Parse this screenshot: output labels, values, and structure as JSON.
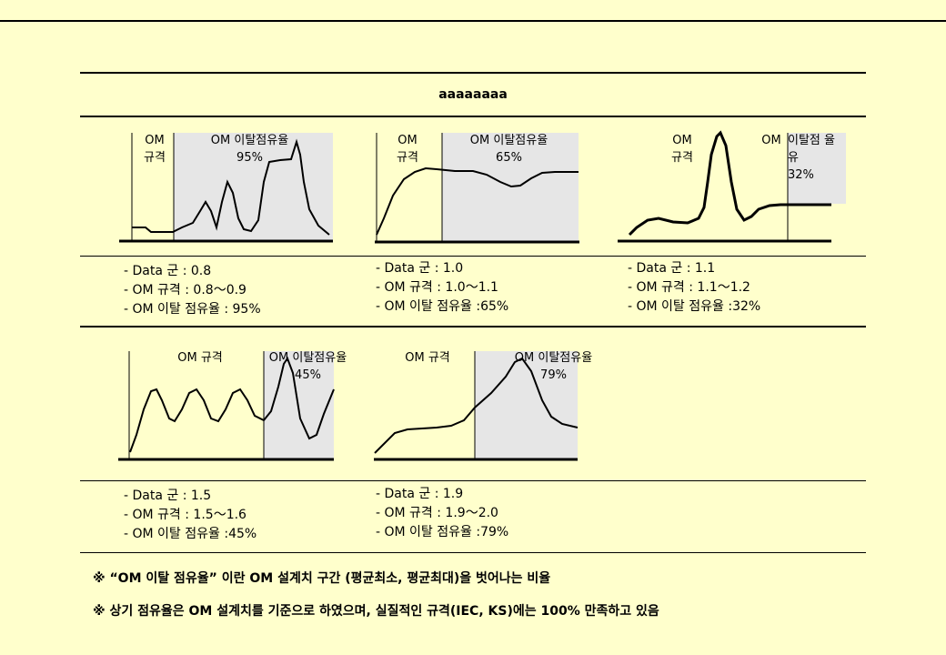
{
  "title": "aaaaaaaa",
  "panels": [
    {
      "spec_label": "OM\n규격",
      "dev_label": "OM 이탈점유율\n95%",
      "desc": [
        "- Data 군  : 0.8",
        "- OM 규격  : 0.8～0.9",
        "- OM 이탈 점유율  : 95%"
      ]
    },
    {
      "spec_label": "OM\n규격",
      "dev_label": "OM 이탈점유율\n65%",
      "desc": [
        "- Data 군  : 1.0",
        "- OM 규격  : 1.0～1.1",
        "- OM 이탈 점유율  :65%"
      ]
    },
    {
      "spec_label": "OM\n규격",
      "dev_label_a": "OM",
      "dev_label_b": "이탈점    율\n유\n32%",
      "desc": [
        "- Data 군  : 1.1",
        "- OM 규격  : 1.1～1.2",
        "- OM 이탈 점유율  :32%"
      ]
    },
    {
      "spec_label": "OM 규격",
      "dev_label": "OM 이탈점유율\n45%",
      "desc": [
        "- Data 군  : 1.5",
        "- OM 규격  : 1.5～1.6",
        "- OM 이탈 점유율  :45%"
      ]
    },
    {
      "spec_label": "OM 규격",
      "dev_label": "OM 이탈점유율\n79%",
      "desc": [
        "- Data 군  : 1.9",
        "- OM 규격  : 1.9～2.0",
        "- OM 이탈 점유율  :79%"
      ]
    }
  ],
  "notes": [
    "※ “OM 이탈 점유율” 이란 OM 설계치 구간 (평균최소, 평균최대)을 벗어나는 비율",
    "※ 상기 점유율은 OM 설계치를 기준으로 하였으며, 실질적인 규격(IEC, KS)에는 100% 만족하고 있음"
  ],
  "colors": {
    "background": "#FFFFCC",
    "shade": "#E6E6E6"
  }
}
